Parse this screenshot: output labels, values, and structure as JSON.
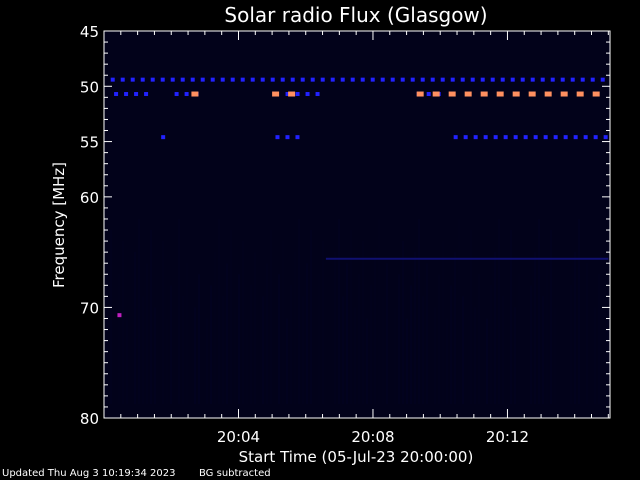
{
  "chart_data": {
    "type": "heatmap",
    "title": "Solar radio Flux (Glasgow)",
    "xlabel": "Start Time (05-Jul-23 20:00:00)",
    "ylabel": "Frequency [MHz]",
    "xlim_minutes": [
      0,
      15.05
    ],
    "ylim": [
      45,
      80
    ],
    "x_ticks": [
      "20:04",
      "20:08",
      "20:12"
    ],
    "y_ticks": [
      45,
      50,
      55,
      60,
      70,
      80
    ],
    "colors": {
      "background": "#000000",
      "plot_background": "#02021a",
      "blue": "#2222ff",
      "dark_blue": "#101070",
      "orange": "#ff9060",
      "red": "#ff2a2a",
      "magenta": "#c020c0"
    },
    "bands": [
      {
        "freq": 49.4,
        "color": "blue",
        "segments": [
          [
            0.2,
            15.0
          ]
        ]
      },
      {
        "freq": 50.7,
        "color": "blue",
        "segments": [
          [
            0.3,
            1.4
          ],
          [
            2.1,
            2.8
          ],
          [
            5.4,
            6.3
          ],
          [
            9.3,
            10.0
          ]
        ]
      },
      {
        "freq": 50.7,
        "color": "orange",
        "segments": [
          [
            2.6,
            2.8
          ],
          [
            5.0,
            5.7
          ],
          [
            9.3,
            15.0
          ]
        ]
      },
      {
        "freq": 54.6,
        "color": "blue",
        "segments": [
          [
            1.7,
            1.9
          ],
          [
            5.1,
            5.7
          ],
          [
            10.4,
            15.0
          ]
        ]
      },
      {
        "freq": 65.6,
        "color": "dark_blue",
        "segments": [
          [
            6.6,
            15.0
          ]
        ]
      },
      {
        "freq": 70.7,
        "color": "magenta",
        "segments": [
          [
            0.4,
            0.5
          ]
        ]
      }
    ]
  },
  "footer": {
    "updated": "Updated Thu Aug  3 10:19:34 2023",
    "note": "BG subtracted"
  }
}
